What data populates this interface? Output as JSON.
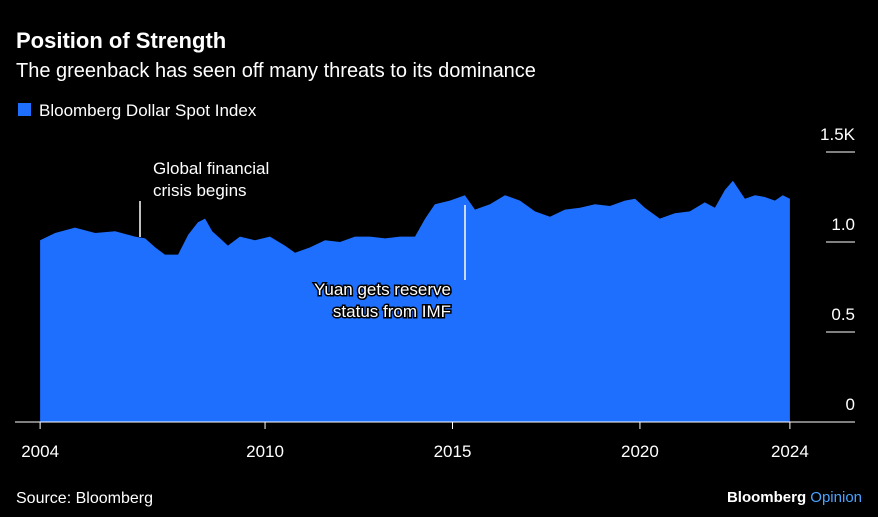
{
  "chart_data": {
    "type": "area",
    "title": "Position of Strength",
    "subtitle": "The greenback has seen off many threats to its dominance",
    "source": "Source: Bloomberg",
    "brand": [
      "Bloomberg",
      "Opinion"
    ],
    "annotations": [
      {
        "lines": [
          "Global financial",
          "crisis begins"
        ]
      },
      {
        "lines": [
          "Yuan gets reserve",
          "status from IMF"
        ]
      }
    ],
    "series": [
      {
        "name": "Bloomberg Dollar Spot Index",
        "color": "#1f6fff",
        "x": [
          2004.0,
          2004.4,
          2004.93,
          2005.47,
          2006.0,
          2006.53,
          2006.8,
          2007.07,
          2007.33,
          2007.68,
          2007.95,
          2008.21,
          2008.4,
          2008.59,
          2008.8,
          2009.01,
          2009.33,
          2009.73,
          2010.13,
          2010.53,
          2010.8,
          2011.2,
          2011.6,
          2012.0,
          2012.4,
          2012.8,
          2013.2,
          2013.6,
          2014.0,
          2014.27,
          2014.53,
          2014.93,
          2015.33,
          2015.6,
          2016.0,
          2016.4,
          2016.8,
          2017.2,
          2017.6,
          2018.0,
          2018.4,
          2018.8,
          2019.2,
          2019.6,
          2019.87,
          2020.13,
          2020.53,
          2020.93,
          2021.33,
          2021.73,
          2022.0,
          2022.27,
          2022.48,
          2022.8,
          2023.07,
          2023.33,
          2023.6,
          2023.81,
          2024.0
        ],
        "values": [
          1.01,
          1.05,
          1.08,
          1.05,
          1.06,
          1.03,
          1.02,
          0.97,
          0.93,
          0.93,
          1.04,
          1.11,
          1.13,
          1.06,
          1.02,
          0.98,
          1.03,
          1.01,
          1.03,
          0.98,
          0.94,
          0.97,
          1.01,
          1.0,
          1.03,
          1.03,
          1.02,
          1.03,
          1.03,
          1.13,
          1.21,
          1.23,
          1.26,
          1.18,
          1.21,
          1.26,
          1.23,
          1.17,
          1.14,
          1.18,
          1.19,
          1.21,
          1.2,
          1.23,
          1.24,
          1.19,
          1.13,
          1.16,
          1.17,
          1.22,
          1.19,
          1.29,
          1.34,
          1.24,
          1.26,
          1.25,
          1.23,
          1.26,
          1.24
        ]
      }
    ],
    "xlim": [
      2003.33,
      2025.47
    ],
    "xticks": [
      2004,
      2010,
      2015,
      2020,
      2024
    ],
    "ylim": [
      0,
      1.5
    ],
    "yticks": [
      0,
      0.5,
      {
        "value": 1,
        "label": "1.0"
      },
      {
        "value": 1.5,
        "label": "1.5K"
      }
    ]
  }
}
